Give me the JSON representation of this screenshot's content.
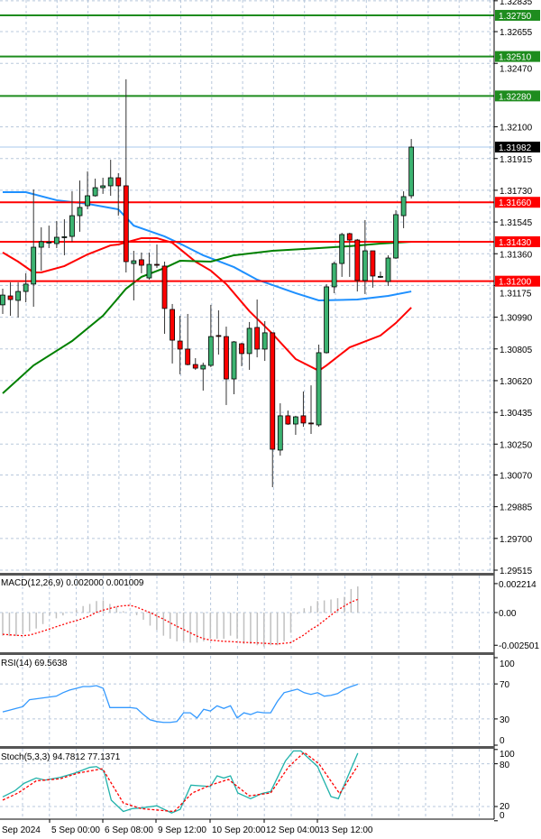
{
  "chart_data": [
    {
      "type": "candlestick",
      "panel": "price",
      "y_axis_ticks": [
        1.32835,
        1.32655,
        1.3247,
        1.321,
        1.31915,
        1.3173,
        1.31545,
        1.3136,
        1.31175,
        1.3099,
        1.30805,
        1.3062,
        1.30435,
        1.3025,
        1.3007,
        1.29885,
        1.297,
        1.29515
      ],
      "ylim": [
        1.2948,
        1.3284
      ],
      "grid": true,
      "current_price": {
        "value": 1.31982,
        "label": "1.31982",
        "color": "#000000"
      },
      "levels": [
        {
          "value": 1.3275,
          "label": "1.32750",
          "color": "#1e8c1e"
        },
        {
          "value": 1.3251,
          "label": "1.32510",
          "color": "#1e8c1e"
        },
        {
          "value": 1.3228,
          "label": "1.32280",
          "color": "#1e8c1e"
        },
        {
          "value": 1.3166,
          "label": "1.31660",
          "color": "#ff0000"
        },
        {
          "value": 1.3143,
          "label": "1.31430",
          "color": "#ff0000"
        },
        {
          "value": 1.312,
          "label": "1.31200",
          "color": "#ff0000"
        }
      ],
      "candles_ohlc": [
        [
          1.31062,
          1.31156,
          1.31009,
          1.31119
        ],
        [
          1.31114,
          1.31193,
          1.30998,
          1.31093
        ],
        [
          1.31088,
          1.31193,
          1.30988,
          1.3114
        ],
        [
          1.3114,
          1.31246,
          1.31077,
          1.31183
        ],
        [
          1.31183,
          1.31735,
          1.31051,
          1.31398
        ],
        [
          1.31398,
          1.31514,
          1.31261,
          1.3143
        ],
        [
          1.31424,
          1.31524,
          1.31393,
          1.31428
        ],
        [
          1.31419,
          1.31551,
          1.31393,
          1.31456
        ],
        [
          1.31456,
          1.31561,
          1.31351,
          1.31459
        ],
        [
          1.31461,
          1.31724,
          1.3143,
          1.31582
        ],
        [
          1.31582,
          1.31787,
          1.31488,
          1.3163
        ],
        [
          1.3164,
          1.3184,
          1.31619,
          1.31698
        ],
        [
          1.31698,
          1.31798,
          1.31693,
          1.31745
        ],
        [
          1.31745,
          1.31803,
          1.31709,
          1.31756
        ],
        [
          1.31756,
          1.31908,
          1.31698,
          1.31803
        ],
        [
          1.31803,
          1.3183,
          1.31582,
          1.31756
        ],
        [
          1.31756,
          1.32377,
          1.31251,
          1.31314
        ],
        [
          1.31303,
          1.31377,
          1.31088,
          1.31319
        ],
        [
          1.31325,
          1.31367,
          1.31246,
          1.31293
        ],
        [
          1.31219,
          1.31367,
          1.31209,
          1.31298
        ],
        [
          1.31298,
          1.31414,
          1.31277,
          1.31295
        ],
        [
          1.31288,
          1.31314,
          1.30893,
          1.31041
        ],
        [
          1.31035,
          1.31067,
          1.3072,
          1.30856
        ],
        [
          1.30851,
          1.30998,
          1.30657,
          1.30804
        ],
        [
          1.30804,
          1.31009,
          1.30709,
          1.30714
        ],
        [
          1.30714,
          1.30751,
          1.30683,
          1.30693
        ],
        [
          1.30688,
          1.30725,
          1.30562,
          1.30709
        ],
        [
          1.30709,
          1.31062,
          1.30699,
          1.30877
        ],
        [
          1.30883,
          1.3103,
          1.30772,
          1.3088
        ],
        [
          1.30877,
          1.30935,
          1.30478,
          1.3063
        ],
        [
          1.3063,
          1.30851,
          1.30541,
          1.30846
        ],
        [
          1.30835,
          1.30841,
          1.30704,
          1.30778
        ],
        [
          1.30778,
          1.30962,
          1.30683,
          1.30925
        ],
        [
          1.3093,
          1.31093,
          1.30756,
          1.30804
        ],
        [
          1.30804,
          1.30967,
          1.30735,
          1.30899
        ],
        [
          1.30899,
          1.30899,
          1.29999,
          1.3022
        ],
        [
          1.30215,
          1.30488,
          1.30183,
          1.30415
        ],
        [
          1.30415,
          1.30446,
          1.30362,
          1.30367
        ],
        [
          1.30367,
          1.30415,
          1.30304,
          1.30409
        ],
        [
          1.30415,
          1.30557,
          1.30351,
          1.30373
        ],
        [
          1.30373,
          1.30593,
          1.30309,
          1.3037
        ],
        [
          1.30362,
          1.3083,
          1.30351,
          1.30783
        ],
        [
          1.30783,
          1.31183,
          1.30778,
          1.31167
        ],
        [
          1.31167,
          1.31314,
          1.3113,
          1.31303
        ],
        [
          1.31303,
          1.31482,
          1.31225,
          1.31472
        ],
        [
          1.31477,
          1.31482,
          1.31225,
          1.3144
        ],
        [
          1.3144,
          1.31446,
          1.3114,
          1.31204
        ],
        [
          1.31204,
          1.31556,
          1.31125,
          1.31377
        ],
        [
          1.31377,
          1.31377,
          1.31162,
          1.3123
        ],
        [
          1.31225,
          1.31256,
          1.31219,
          1.31228
        ],
        [
          1.31198,
          1.31351,
          1.31172,
          1.31335
        ],
        [
          1.31335,
          1.31614,
          1.3133,
          1.31588
        ],
        [
          1.31582,
          1.31724,
          1.31509,
          1.31693
        ],
        [
          1.31698,
          1.32029,
          1.31682,
          1.31982
        ]
      ],
      "candle_colors": {
        "up": "#3cb371",
        "down": "#ff0000"
      },
      "moving_averages": [
        {
          "color": "#1e90ff",
          "points": [
            [
              0,
              1.31719
            ],
            [
              3,
              1.31719
            ],
            [
              7,
              1.31672
            ],
            [
              11,
              1.31651
            ],
            [
              15,
              1.31619
            ],
            [
              17,
              1.31524
            ],
            [
              21,
              1.31461
            ],
            [
              23,
              1.31419
            ],
            [
              26,
              1.31351
            ],
            [
              30,
              1.31282
            ],
            [
              33,
              1.31209
            ],
            [
              38,
              1.3113
            ],
            [
              41,
              1.31088
            ],
            [
              46,
              1.31093
            ],
            [
              50,
              1.31114
            ],
            [
              53,
              1.3114
            ]
          ]
        },
        {
          "color": "#ff0000",
          "points": [
            [
              0,
              1.31367
            ],
            [
              2,
              1.31314
            ],
            [
              4,
              1.31251
            ],
            [
              5,
              1.31251
            ],
            [
              8,
              1.31288
            ],
            [
              11,
              1.31356
            ],
            [
              14,
              1.31409
            ],
            [
              15,
              1.31414
            ],
            [
              18,
              1.31451
            ],
            [
              20,
              1.31451
            ],
            [
              22,
              1.31424
            ],
            [
              25,
              1.31314
            ],
            [
              27,
              1.31261
            ],
            [
              29,
              1.31183
            ],
            [
              32,
              1.31025
            ],
            [
              35,
              1.30893
            ],
            [
              38,
              1.30746
            ],
            [
              41,
              1.30678
            ],
            [
              42,
              1.30709
            ],
            [
              45,
              1.30814
            ],
            [
              49,
              1.30883
            ],
            [
              51,
              1.30956
            ],
            [
              53,
              1.31046
            ]
          ]
        },
        {
          "color": "#008000",
          "points": [
            [
              0,
              1.30546
            ],
            [
              4,
              1.30709
            ],
            [
              9,
              1.30851
            ],
            [
              13,
              1.30998
            ],
            [
              16,
              1.31156
            ],
            [
              18,
              1.31225
            ],
            [
              21,
              1.31277
            ],
            [
              23,
              1.31319
            ],
            [
              27,
              1.31314
            ],
            [
              30,
              1.31351
            ],
            [
              35,
              1.31377
            ],
            [
              41,
              1.31393
            ],
            [
              45,
              1.31404
            ],
            [
              49,
              1.31419
            ],
            [
              53,
              1.3143
            ]
          ]
        }
      ],
      "x_tick_labels": [
        "Sep 2024",
        "5 Sep 00:00",
        "6 Sep 08:00",
        "9 Sep 12:00",
        "10 Sep 20:00",
        "12 Sep 04:00",
        "13 Sep 12:00"
      ]
    },
    {
      "type": "bar",
      "panel": "macd",
      "title": "MACD(12,26,9) 0.002000 0.001009",
      "y_axis_ticks": [
        "0.002214",
        "0.00",
        "-0.002501"
      ],
      "y_tick_values": [
        0.002214,
        0,
        -0.002501
      ],
      "histogram": [
        -0.00177,
        -0.0018,
        -0.0018,
        -0.00166,
        -0.00144,
        -0.00122,
        -0.00088,
        -0.0002,
        -0.00044,
        -0.00022,
        2e-05,
        0.00022,
        0.0005,
        0.00066,
        0.00088,
        0.00093,
        0.00066,
        0.00044,
        0.0001,
        0.0,
        -0.0002,
        -0.00055,
        -0.001,
        -0.00133,
        -0.00177,
        -0.002,
        -0.0022,
        -0.0022,
        -0.0023,
        -0.0023,
        -0.0022,
        -0.002,
        -0.002,
        -0.002,
        -0.00177,
        -0.002,
        -0.0024,
        -0.0024,
        -0.0025,
        -0.0026,
        -0.0025,
        -0.0025,
        -0.0022,
        -0.00155,
        -0.0001,
        0.00033,
        0.0005,
        0.00088,
        0.00093,
        0.001,
        0.0011,
        0.0012,
        0.0018,
        0.002
      ],
      "signal": [
        -0.00166,
        -0.0017,
        -0.00174,
        -0.00177,
        -0.00172,
        -0.00158,
        -0.00142,
        -0.00125,
        -0.00108,
        -0.00092,
        -0.00075,
        -0.00062,
        -0.00045,
        -0.00025,
        2e-05,
        0.00018,
        0.00032,
        0.00045,
        0.00052,
        0.00055,
        0.00042,
        0.0002,
        0.0,
        -0.00025,
        -0.0005,
        -0.00078,
        -0.00105,
        -0.0013,
        -0.00155,
        -0.0018,
        -0.002,
        -0.0021,
        -0.00215,
        -0.0022,
        -0.00222,
        -0.00225,
        -0.00228,
        -0.0023,
        -0.00232,
        -0.00235,
        -0.00238,
        -0.0024,
        -0.00235,
        -0.0023,
        -0.002,
        -0.0017,
        -0.0013,
        -0.001,
        -0.0006,
        -0.0002,
        0.0002,
        0.0005,
        0.0008,
        0.001009
      ],
      "histogram_color": "#c0c0c0",
      "signal_color": "#ff0000"
    },
    {
      "type": "line",
      "panel": "rsi",
      "title": "RSI(14) 69.5638",
      "y_axis_ticks": [
        "100",
        "70",
        "30",
        "0"
      ],
      "ylim": [
        0,
        100
      ],
      "levels": [
        70,
        30
      ],
      "color": "#3399ff",
      "values": [
        38,
        40,
        42,
        44,
        52,
        53,
        54,
        55,
        56,
        60,
        63,
        65,
        67,
        67,
        68,
        65,
        43,
        43,
        43,
        43,
        42,
        35,
        29,
        27,
        26,
        26,
        27,
        37,
        37,
        31,
        41,
        39,
        45,
        42,
        45,
        31,
        37,
        35,
        38,
        37,
        37,
        50,
        60,
        62,
        64,
        60,
        58,
        60,
        56,
        57,
        59,
        64,
        67,
        69.5638
      ]
    },
    {
      "type": "line",
      "panel": "stochastic",
      "title": "Stoch(5,3,3) 94.7812 77.1371",
      "y_axis_ticks": [
        "100",
        "80",
        "20",
        "0"
      ],
      "ylim": [
        0,
        100
      ],
      "levels": [
        80,
        20
      ],
      "series": [
        {
          "color": "#20b2aa",
          "points": [
            [
              0,
              33.5
            ],
            [
              1.8,
              42
            ],
            [
              3.2,
              52.6
            ],
            [
              5,
              60
            ],
            [
              6.3,
              57
            ],
            [
              8.6,
              61
            ],
            [
              10.8,
              67
            ],
            [
              13,
              75
            ],
            [
              14,
              76
            ],
            [
              15.1,
              70
            ],
            [
              16.2,
              29
            ],
            [
              18,
              13
            ],
            [
              19.3,
              17
            ],
            [
              20.7,
              18
            ],
            [
              23,
              21
            ],
            [
              25.2,
              11
            ],
            [
              26.5,
              16
            ],
            [
              28.1,
              50
            ],
            [
              31,
              48
            ],
            [
              32,
              63
            ],
            [
              33,
              60
            ],
            [
              34,
              63
            ],
            [
              35.1,
              39
            ],
            [
              37,
              31
            ],
            [
              38.6,
              38
            ],
            [
              40,
              41
            ],
            [
              42.2,
              84
            ],
            [
              43.4,
              98
            ],
            [
              44.5,
              98
            ],
            [
              47,
              76
            ],
            [
              49,
              34
            ],
            [
              50.1,
              31
            ],
            [
              53,
              94.7812
            ]
          ]
        },
        {
          "color": "#ff0000",
          "dashed": true,
          "points": [
            [
              0,
              29
            ],
            [
              2.3,
              39
            ],
            [
              5,
              56
            ],
            [
              8.6,
              59
            ],
            [
              11.3,
              67
            ],
            [
              14.9,
              73
            ],
            [
              18,
              25
            ],
            [
              20.7,
              17
            ],
            [
              25.6,
              13
            ],
            [
              28.3,
              39
            ],
            [
              31,
              50
            ],
            [
              33.7,
              58
            ],
            [
              36.8,
              35
            ],
            [
              40,
              39
            ],
            [
              42.7,
              76
            ],
            [
              45,
              96
            ],
            [
              47.2,
              80
            ],
            [
              50.3,
              38
            ],
            [
              53,
              77.1371
            ]
          ]
        }
      ]
    }
  ]
}
